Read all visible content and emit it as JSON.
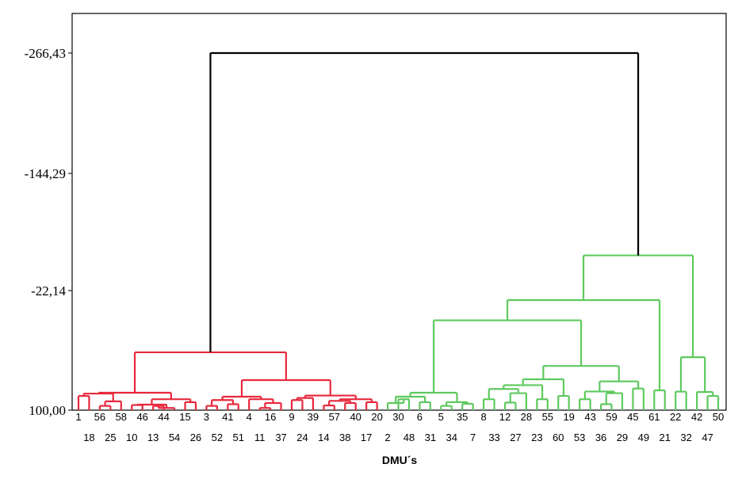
{
  "chart_data": {
    "type": "dendrogram",
    "title": "",
    "xlabel": "DMU´s",
    "ylabel": "",
    "yticks": [
      "-266,43",
      "-144,29",
      "-22,14",
      "100,00"
    ],
    "ylim": [
      100.0,
      -266.43
    ],
    "grid": false,
    "colors": {
      "cluster1": "#e8283c",
      "cluster2": "#5fc95f",
      "root": "#000000",
      "axis": "#000000"
    },
    "leaf_order": [
      "1",
      "18",
      "56",
      "25",
      "58",
      "10",
      "46",
      "13",
      "44",
      "54",
      "15",
      "26",
      "3",
      "52",
      "41",
      "51",
      "4",
      "11",
      "16",
      "37",
      "9",
      "24",
      "39",
      "14",
      "57",
      "38",
      "40",
      "17",
      "20",
      "2",
      "30",
      "48",
      "6",
      "31",
      "5",
      "34",
      "35",
      "7",
      "8",
      "33",
      "12",
      "27",
      "28",
      "23",
      "55",
      "60",
      "19",
      "53",
      "43",
      "36",
      "59",
      "29",
      "45",
      "49",
      "61",
      "21",
      "22",
      "32",
      "42",
      "47",
      "50"
    ],
    "top_row_labels": [
      "1",
      "56",
      "58",
      "46",
      "44",
      "15",
      "3",
      "41",
      "4",
      "16",
      "9",
      "39",
      "57",
      "40",
      "20",
      "30",
      "6",
      "5",
      "35",
      "8",
      "12",
      "28",
      "55",
      "19",
      "43",
      "59",
      "45",
      "61",
      "22",
      "42",
      "50"
    ],
    "bottom_row_labels": [
      "18",
      "25",
      "10",
      "13",
      "54",
      "26",
      "52",
      "51",
      "11",
      "37",
      "24",
      "14",
      "38",
      "17",
      "2",
      "48",
      "31",
      "34",
      "7",
      "33",
      "27",
      "23",
      "60",
      "53",
      "36",
      "29",
      "49",
      "21",
      "32",
      "47"
    ],
    "merges": [
      {
        "c": "cluster1",
        "l": [
          0,
          1
        ],
        "h": 85.44
      },
      {
        "c": "cluster1",
        "l": [
          2,
          3
        ],
        "h": 95.6
      },
      {
        "c": "cluster1",
        "l": [
          2,
          3,
          4
        ],
        "h": 90.94
      },
      {
        "c": "cluster1",
        "l": [
          0,
          1,
          2,
          3,
          4
        ],
        "h": 83.0
      },
      {
        "c": "cluster1",
        "l": [
          5,
          6
        ],
        "h": 94.74
      },
      {
        "c": "cluster1",
        "l": [
          7,
          8
        ],
        "h": 95.6
      },
      {
        "c": "cluster1",
        "l": [
          7,
          8,
          9
        ],
        "h": 97.76
      },
      {
        "c": "cluster1",
        "l": [
          5,
          6,
          7,
          8,
          9
        ],
        "h": 94.31
      },
      {
        "c": "cluster1",
        "l": [
          10,
          11
        ],
        "h": 91.8
      },
      {
        "c": "cluster1",
        "l": [
          5,
          6,
          7,
          8,
          9,
          10,
          11
        ],
        "h": 88.78
      },
      {
        "c": "cluster1",
        "l": [
          0,
          1,
          2,
          3,
          4,
          5,
          6,
          7,
          8,
          9,
          10,
          11
        ],
        "h": 82.14
      },
      {
        "c": "cluster1",
        "l": [
          12,
          13
        ],
        "h": 95.6
      },
      {
        "c": "cluster1",
        "l": [
          14,
          15
        ],
        "h": 93.88
      },
      {
        "c": "cluster1",
        "l": [
          12,
          13,
          14,
          15
        ],
        "h": 89.65
      },
      {
        "c": "cluster1",
        "l": [
          17,
          18
        ],
        "h": 97.76
      },
      {
        "c": "cluster1",
        "l": [
          17,
          18,
          19
        ],
        "h": 92.66
      },
      {
        "c": "cluster1",
        "l": [
          16,
          17,
          18,
          19
        ],
        "h": 88.78
      },
      {
        "c": "cluster1",
        "l": [
          12,
          13,
          14,
          15,
          16,
          17,
          18,
          19
        ],
        "h": 86.19
      },
      {
        "c": "cluster1",
        "l": [
          20,
          21
        ],
        "h": 89.65
      },
      {
        "c": "cluster1",
        "l": [
          20,
          21,
          22
        ],
        "h": 87.49
      },
      {
        "c": "cluster1",
        "l": [
          23,
          24
        ],
        "h": 95.17
      },
      {
        "c": "cluster1",
        "l": [
          25,
          26
        ],
        "h": 92.66
      },
      {
        "c": "cluster1",
        "l": [
          23,
          24,
          25,
          26
        ],
        "h": 90.51
      },
      {
        "c": "cluster1",
        "l": [
          27,
          28
        ],
        "h": 91.8
      },
      {
        "c": "cluster1",
        "l": [
          23,
          24,
          25,
          26,
          27,
          28
        ],
        "h": 88.78
      },
      {
        "c": "cluster1",
        "l": [
          20,
          21,
          22,
          23,
          24,
          25,
          26,
          27,
          28
        ],
        "h": 85.01
      },
      {
        "c": "cluster1",
        "l": [
          12,
          13,
          14,
          15,
          16,
          17,
          18,
          19,
          20,
          21,
          22,
          23,
          24,
          25,
          26,
          27,
          28
        ],
        "h": 69.19
      },
      {
        "c": "cluster1",
        "l": [
          0,
          1,
          2,
          3,
          4,
          5,
          6,
          7,
          8,
          9,
          10,
          11,
          12,
          13,
          14,
          15,
          16,
          17,
          18,
          19,
          20,
          21,
          22,
          23,
          24,
          25,
          26,
          27,
          28
        ],
        "h": 40.62
      },
      {
        "c": "cluster2",
        "l": [
          30,
          31
        ],
        "h": 88.78
      },
      {
        "c": "cluster2",
        "l": [
          29,
          30,
          31
        ],
        "h": 92.66
      },
      {
        "c": "cluster2",
        "l": [
          32,
          33
        ],
        "h": 91.8
      },
      {
        "c": "cluster2",
        "l": [
          29,
          30,
          31,
          32,
          33
        ],
        "h": 86.19
      },
      {
        "c": "cluster2",
        "l": [
          34,
          35
        ],
        "h": 95.6
      },
      {
        "c": "cluster2",
        "l": [
          36,
          37
        ],
        "h": 93.45
      },
      {
        "c": "cluster2",
        "l": [
          34,
          35,
          36,
          37
        ],
        "h": 91.8
      },
      {
        "c": "cluster2",
        "l": [
          29,
          30,
          31,
          32,
          33,
          34,
          35,
          36,
          37
        ],
        "h": 82.14
      },
      {
        "c": "cluster2",
        "l": [
          38,
          39
        ],
        "h": 88.78
      },
      {
        "c": "cluster2",
        "l": [
          40,
          41
        ],
        "h": 92.23
      },
      {
        "c": "cluster2",
        "l": [
          40,
          41,
          42
        ],
        "h": 82.57
      },
      {
        "c": "cluster2",
        "l": [
          38,
          39,
          40,
          41,
          42
        ],
        "h": 78.25
      },
      {
        "c": "cluster2",
        "l": [
          43,
          44
        ],
        "h": 88.78
      },
      {
        "c": "cluster2",
        "l": [
          38,
          39,
          40,
          41,
          42,
          43,
          44
        ],
        "h": 74.37
      },
      {
        "c": "cluster2",
        "l": [
          45,
          46
        ],
        "h": 85.44
      },
      {
        "c": "cluster2",
        "l": [
          38,
          39,
          40,
          41,
          42,
          43,
          44,
          45,
          46
        ],
        "h": 68.33
      },
      {
        "c": "cluster2",
        "l": [
          47,
          48
        ],
        "h": 88.78
      },
      {
        "c": "cluster2",
        "l": [
          49,
          50
        ],
        "h": 93.88
      },
      {
        "c": "cluster2",
        "l": [
          49,
          50,
          51
        ],
        "h": 82.57
      },
      {
        "c": "cluster2",
        "l": [
          47,
          48,
          49,
          50,
          51
        ],
        "h": 80.84
      },
      {
        "c": "cluster2",
        "l": [
          52,
          53
        ],
        "h": 77.82
      },
      {
        "c": "cluster2",
        "l": [
          47,
          48,
          49,
          50,
          51,
          52,
          53
        ],
        "h": 70.49
      },
      {
        "c": "cluster2",
        "l": [
          38,
          39,
          40,
          41,
          42,
          43,
          44,
          45,
          46,
          47,
          48,
          49,
          50,
          51,
          52,
          53
        ],
        "h": 54.67
      },
      {
        "c": "cluster2",
        "l": [
          29,
          30,
          31,
          32,
          33,
          34,
          35,
          36,
          37,
          38,
          39,
          40,
          41,
          42,
          43,
          44,
          45,
          46,
          47,
          48,
          49,
          50,
          51,
          52,
          53
        ],
        "h": 7.83
      },
      {
        "c": "cluster2",
        "l": [
          54,
          55
        ],
        "h": 79.7
      },
      {
        "c": "cluster2",
        "l": [
          29,
          30,
          31,
          32,
          33,
          34,
          35,
          36,
          37,
          38,
          39,
          40,
          41,
          42,
          43,
          44,
          45,
          46,
          47,
          48,
          49,
          50,
          51,
          52,
          53,
          54,
          55
        ],
        "h": -12.91
      },
      {
        "c": "cluster2",
        "l": [
          56,
          57
        ],
        "h": 80.98
      },
      {
        "c": "cluster2",
        "l": [
          59,
          60
        ],
        "h": 85.44
      },
      {
        "c": "cluster2",
        "l": [
          58,
          59,
          60
        ],
        "h": 81.41
      },
      {
        "c": "cluster2",
        "l": [
          56,
          57,
          58,
          59,
          60
        ],
        "h": 45.66
      },
      {
        "c": "cluster2",
        "l": [
          29,
          30,
          31,
          32,
          33,
          34,
          35,
          36,
          37,
          38,
          39,
          40,
          41,
          42,
          43,
          44,
          45,
          46,
          47,
          48,
          49,
          50,
          51,
          52,
          53,
          54,
          55,
          56,
          57,
          58,
          59,
          60
        ],
        "h": -58.78
      },
      {
        "c": "root",
        "l": [
          0,
          1,
          2,
          3,
          4,
          5,
          6,
          7,
          8,
          9,
          10,
          11,
          12,
          13,
          14,
          15,
          16,
          17,
          18,
          19,
          20,
          21,
          22,
          23,
          24,
          25,
          26,
          27,
          28,
          29,
          30,
          31,
          32,
          33,
          34,
          35,
          36,
          37,
          38,
          39,
          40,
          41,
          42,
          43,
          44,
          45,
          46,
          47,
          48,
          49,
          50,
          51,
          52,
          53,
          54,
          55,
          56,
          57,
          58,
          59,
          60
        ],
        "h": -266.43
      }
    ]
  }
}
